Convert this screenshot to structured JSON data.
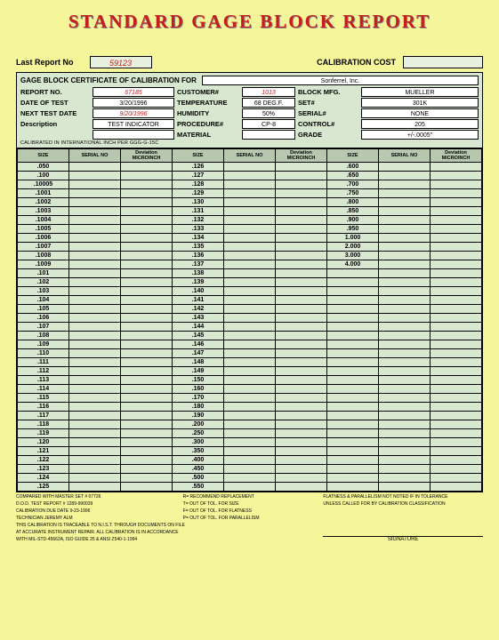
{
  "title": "STANDARD GAGE BLOCK REPORT",
  "top": {
    "last_report_label": "Last Report No",
    "last_report_no": "59123",
    "cal_cost_label": "CALIBRATION COST"
  },
  "cert": {
    "label": "GAGE BLOCK CERTIFICATE OF CALIBRATION FOR",
    "company": "Sonferrel, Inc."
  },
  "header": {
    "rows": [
      [
        "REPORT NO.",
        "67185",
        "CUSTOMER#",
        "1013",
        "BLOCK MFG.",
        "MUELLER"
      ],
      [
        "DATE OF TEST",
        "3/20/1996",
        "TEMPERATURE",
        "68 DEG.F.",
        "SET#",
        "301K"
      ],
      [
        "NEXT TEST DATE",
        "9/20/1996",
        "HUMIDITY",
        "50%",
        "SERIAL#",
        "NONE"
      ],
      [
        "Description",
        "TEST INDICATOR",
        "PROCEDURE#",
        "CP-8",
        "CONTROL#",
        "205"
      ],
      [
        "",
        "",
        "MATERIAL",
        "",
        "GRADE",
        "+/-.0005\""
      ]
    ],
    "red_cells": [
      "67185",
      "9/20/1996",
      "1013"
    ],
    "cal_note": "CALIBRATED IN INTERNATIONAL INCH PER GGG-G-15C"
  },
  "columns": [
    "SIZE",
    "SERIAL NO",
    "Deviation MICROINCH",
    "SIZE",
    "SERIAL NO",
    "Deviation MICROINCH",
    "SIZE",
    "SERIAL NO",
    "Deviation MICROINCH"
  ],
  "rows": [
    [
      ".050",
      "",
      "",
      ".126",
      "",
      "",
      ".600",
      "",
      ""
    ],
    [
      ".100",
      "",
      "",
      ".127",
      "",
      "",
      ".650",
      "",
      ""
    ],
    [
      ".10005",
      "",
      "",
      ".128",
      "",
      "",
      ".700",
      "",
      ""
    ],
    [
      ".1001",
      "",
      "",
      ".129",
      "",
      "",
      ".750",
      "",
      ""
    ],
    [
      ".1002",
      "",
      "",
      ".130",
      "",
      "",
      ".800",
      "",
      ""
    ],
    [
      ".1003",
      "",
      "",
      ".131",
      "",
      "",
      ".850",
      "",
      ""
    ],
    [
      ".1004",
      "",
      "",
      ".132",
      "",
      "",
      ".900",
      "",
      ""
    ],
    [
      ".1005",
      "",
      "",
      ".133",
      "",
      "",
      ".950",
      "",
      ""
    ],
    [
      ".1006",
      "",
      "",
      ".134",
      "",
      "",
      "1.000",
      "",
      ""
    ],
    [
      ".1007",
      "",
      "",
      ".135",
      "",
      "",
      "2.000",
      "",
      ""
    ],
    [
      ".1008",
      "",
      "",
      ".136",
      "",
      "",
      "3.000",
      "",
      ""
    ],
    [
      ".1009",
      "",
      "",
      ".137",
      "",
      "",
      "4.000",
      "",
      ""
    ],
    [
      ".101",
      "",
      "",
      ".138",
      "",
      "",
      "",
      "",
      ""
    ],
    [
      ".102",
      "",
      "",
      ".139",
      "",
      "",
      "",
      "",
      ""
    ],
    [
      ".103",
      "",
      "",
      ".140",
      "",
      "",
      "",
      "",
      ""
    ],
    [
      ".104",
      "",
      "",
      ".141",
      "",
      "",
      "",
      "",
      ""
    ],
    [
      ".105",
      "",
      "",
      ".142",
      "",
      "",
      "",
      "",
      ""
    ],
    [
      ".106",
      "",
      "",
      ".143",
      "",
      "",
      "",
      "",
      ""
    ],
    [
      ".107",
      "",
      "",
      ".144",
      "",
      "",
      "",
      "",
      ""
    ],
    [
      ".108",
      "",
      "",
      ".145",
      "",
      "",
      "",
      "",
      ""
    ],
    [
      ".109",
      "",
      "",
      ".146",
      "",
      "",
      "",
      "",
      ""
    ],
    [
      ".110",
      "",
      "",
      ".147",
      "",
      "",
      "",
      "",
      ""
    ],
    [
      ".111",
      "",
      "",
      ".148",
      "",
      "",
      "",
      "",
      ""
    ],
    [
      ".112",
      "",
      "",
      ".149",
      "",
      "",
      "",
      "",
      ""
    ],
    [
      ".113",
      "",
      "",
      ".150",
      "",
      "",
      "",
      "",
      ""
    ],
    [
      ".114",
      "",
      "",
      ".160",
      "",
      "",
      "",
      "",
      ""
    ],
    [
      ".115",
      "",
      "",
      ".170",
      "",
      "",
      "",
      "",
      ""
    ],
    [
      ".116",
      "",
      "",
      ".180",
      "",
      "",
      "",
      "",
      ""
    ],
    [
      ".117",
      "",
      "",
      ".190",
      "",
      "",
      "",
      "",
      ""
    ],
    [
      ".118",
      "",
      "",
      ".200",
      "",
      "",
      "",
      "",
      ""
    ],
    [
      ".119",
      "",
      "",
      ".250",
      "",
      "",
      "",
      "",
      ""
    ],
    [
      ".120",
      "",
      "",
      ".300",
      "",
      "",
      "",
      "",
      ""
    ],
    [
      ".121",
      "",
      "",
      ".350",
      "",
      "",
      "",
      "",
      ""
    ],
    [
      ".122",
      "",
      "",
      ".400",
      "",
      "",
      "",
      "",
      ""
    ],
    [
      ".123",
      "",
      "",
      ".450",
      "",
      "",
      "",
      "",
      ""
    ],
    [
      ".124",
      "",
      "",
      ".500",
      "",
      "",
      "",
      "",
      ""
    ],
    [
      ".125",
      "",
      "",
      ".550",
      "",
      "",
      "",
      "",
      ""
    ]
  ],
  "footer": {
    "l1": "COMPARED WITH MASTER SET #    07726",
    "l2": "D.O.D. TEST REPORT #  1289-990039",
    "l3": "CALIBRATION DUE DATE    9-23-1996",
    "l4": "TECHNICIAN   JEREMY ALM",
    "l5": "THIS CALIBRATION IS TRACEABLE TO N.I.S.T. THROUGH DOCUMENTS ON FILE",
    "l6": "AT ACCURATE INSTRUMENT REPAIR. ALL CALIBRATION IS IN ACCORDANCE",
    "l7": "WITH MIL-STD-45662A, ISO GUIDE 25 & ANSI Z540-1-1994",
    "m1": "R= RECOMMEND REPLACEMENT",
    "m2": "T= OUT OF TOL. FOR SIZE",
    "m3": "F= OUT OF TOL. FOR FLATNESS",
    "m4": "P= OUT OF TOL. FOR PARALLELISM",
    "r1": "FLATNESS & PARALLELISM NOT NOTED IF IN TOLERANCE",
    "r2": "UNLESS CALLED FOR BY CALIBRATION CLASSIFICATION",
    "sig": "SIGNATURE"
  },
  "colors": {
    "page_bg": "#f5f59a",
    "cell_bg": "#d8e8d0",
    "title_red": "#c41e1e"
  }
}
